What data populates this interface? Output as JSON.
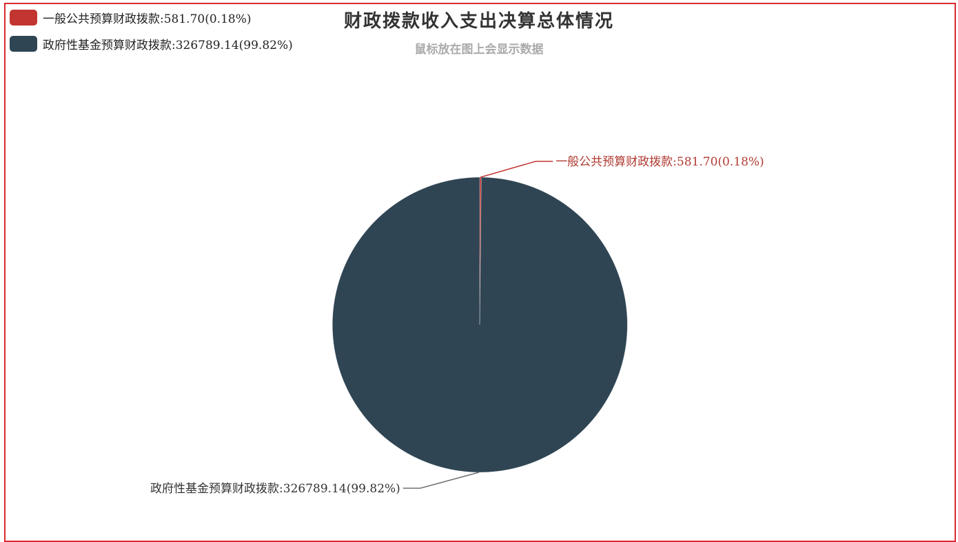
{
  "chart_data": {
    "type": "pie",
    "title": "财政拨款收入支出决算总体情况",
    "subtitle": "鼠标放在图上会显示数据",
    "legend_position": "top-left",
    "slices": [
      {
        "name": "一般公共预算财政拨款",
        "value": 581.7,
        "percent": 0.18,
        "color": "#c23531",
        "label": "一般公共预算财政拨款:581.70(0.18%)"
      },
      {
        "name": "政府性基金预算财政拨款",
        "value": 326789.14,
        "percent": 99.82,
        "color": "#2f4554",
        "label": "政府性基金预算财政拨款:326789.14(99.82%)"
      }
    ]
  },
  "colors": {
    "frame_border": "#d9272e",
    "leader_line_gray": "#6e7074"
  }
}
